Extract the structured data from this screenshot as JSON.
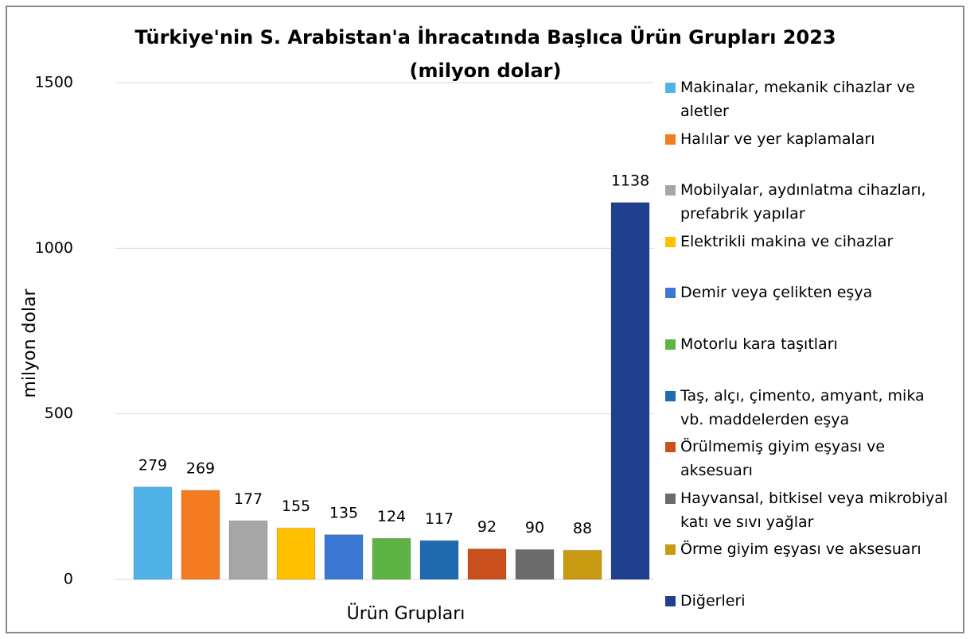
{
  "chart_data": {
    "type": "bar",
    "title": "Türkiye'nin S. Arabistan'a İhracatında Başlıca Ürün Grupları 2023",
    "subtitle": "(milyon dolar)",
    "y_label": "milyon dolar",
    "x_label": "Ürün Grupları",
    "categories": [
      "Makinalar, mekanik cihazlar ve aletler",
      "Halılar ve yer kaplamaları",
      "Mobilyalar, aydınlatma cihazları, prefabrik yapılar",
      "Elektrikli makina ve cihazlar",
      "Demir veya çelikten eşya",
      "Motorlu kara taşıtları",
      "Taş, alçı, çimento, amyant, mika vb. maddelerden eşya",
      "Örülmemiş giyim eşyası ve aksesuarı",
      "Hayvansal, bitkisel veya mikrobiyal katı ve sıvı yağlar",
      "Örme giyim eşyası ve aksesuarı",
      "Diğerleri"
    ],
    "values": [
      279,
      269,
      177,
      155,
      135,
      124,
      117,
      92,
      90,
      88,
      1138
    ],
    "colors": [
      "#4fb3e8",
      "#f47c20",
      "#a6a6a6",
      "#ffc000",
      "#3a78d4",
      "#5fb344",
      "#1f6bb0",
      "#c9501c",
      "#6b6b6b",
      "#c79a12",
      "#1f3f8f"
    ],
    "ylim": [
      0,
      1500
    ],
    "yticks": [
      0,
      500,
      1000,
      1500
    ],
    "grid": true,
    "legend": "right"
  }
}
